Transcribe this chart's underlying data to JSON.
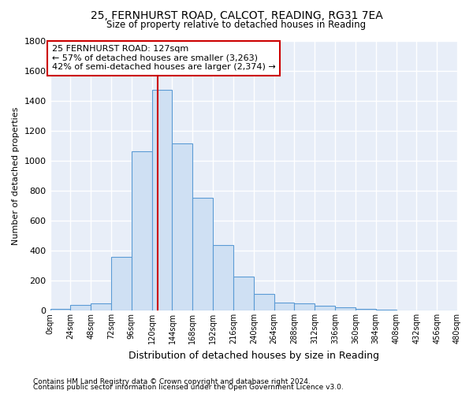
{
  "title_line1": "25, FERNHURST ROAD, CALCOT, READING, RG31 7EA",
  "title_line2": "Size of property relative to detached houses in Reading",
  "xlabel": "Distribution of detached houses by size in Reading",
  "ylabel": "Number of detached properties",
  "bin_labels": [
    "0sqm",
    "24sqm",
    "48sqm",
    "72sqm",
    "96sqm",
    "120sqm",
    "144sqm",
    "168sqm",
    "192sqm",
    "216sqm",
    "240sqm",
    "264sqm",
    "288sqm",
    "312sqm",
    "336sqm",
    "360sqm",
    "384sqm",
    "408sqm",
    "432sqm",
    "456sqm",
    "480sqm"
  ],
  "bar_values": [
    10,
    35,
    50,
    360,
    1060,
    1470,
    1115,
    750,
    435,
    225,
    110,
    55,
    50,
    30,
    22,
    10,
    5,
    2,
    1,
    0,
    0
  ],
  "bar_color": "#cfe0f3",
  "bar_edge_color": "#5b9bd5",
  "vline_x": 127,
  "vline_color": "#cc0000",
  "annotation_line1": "25 FERNHURST ROAD: 127sqm",
  "annotation_line2": "← 57% of detached houses are smaller (3,263)",
  "annotation_line3": "42% of semi-detached houses are larger (2,374) →",
  "annotation_box_color": "#cc0000",
  "background_color": "#ffffff",
  "plot_bg_color": "#e8eef8",
  "grid_color": "#ffffff",
  "ylim": [
    0,
    1800
  ],
  "yticks": [
    0,
    200,
    400,
    600,
    800,
    1000,
    1200,
    1400,
    1600,
    1800
  ],
  "footnote1": "Contains HM Land Registry data © Crown copyright and database right 2024.",
  "footnote2": "Contains public sector information licensed under the Open Government Licence v3.0."
}
